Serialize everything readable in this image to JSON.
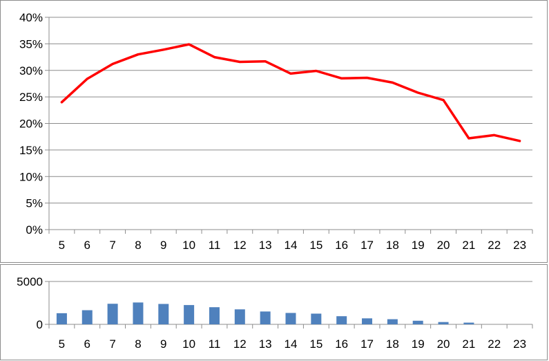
{
  "chart_data": [
    {
      "type": "line",
      "title": "",
      "xlabel": "",
      "ylabel": "",
      "x": [
        5,
        6,
        7,
        8,
        9,
        10,
        11,
        12,
        13,
        14,
        15,
        16,
        17,
        18,
        19,
        20,
        21,
        22,
        23
      ],
      "series": [
        {
          "values": [
            0.24,
            0.284,
            0.312,
            0.33,
            0.339,
            0.349,
            0.325,
            0.316,
            0.317,
            0.294,
            0.299,
            0.285,
            0.286,
            0.277,
            0.258,
            0.244,
            0.172,
            0.178,
            0.167
          ],
          "color": "#ff0000"
        }
      ],
      "ylim": [
        0,
        0.4
      ],
      "yticks": [
        0,
        0.05,
        0.1,
        0.15,
        0.2,
        0.25,
        0.3,
        0.35,
        0.4
      ],
      "ytick_labels": [
        "0%",
        "5%",
        "10%",
        "15%",
        "20%",
        "25%",
        "30%",
        "35%",
        "40%"
      ],
      "grid": true,
      "legend": "none"
    },
    {
      "type": "bar",
      "title": "",
      "xlabel": "",
      "ylabel": "",
      "categories": [
        "5",
        "6",
        "7",
        "8",
        "9",
        "10",
        "11",
        "12",
        "13",
        "14",
        "15",
        "16",
        "17",
        "18",
        "19",
        "20",
        "21",
        "22",
        "23"
      ],
      "series": [
        {
          "values": [
            1300,
            1650,
            2400,
            2550,
            2380,
            2250,
            2000,
            1750,
            1500,
            1330,
            1250,
            950,
            700,
            600,
            420,
            270,
            200,
            0,
            0
          ],
          "color": "#4f81bd"
        }
      ],
      "ylim": [
        0,
        5000
      ],
      "yticks": [
        0,
        5000
      ],
      "ytick_labels": [
        "0",
        "5000"
      ],
      "grid": true,
      "legend": "none"
    }
  ]
}
